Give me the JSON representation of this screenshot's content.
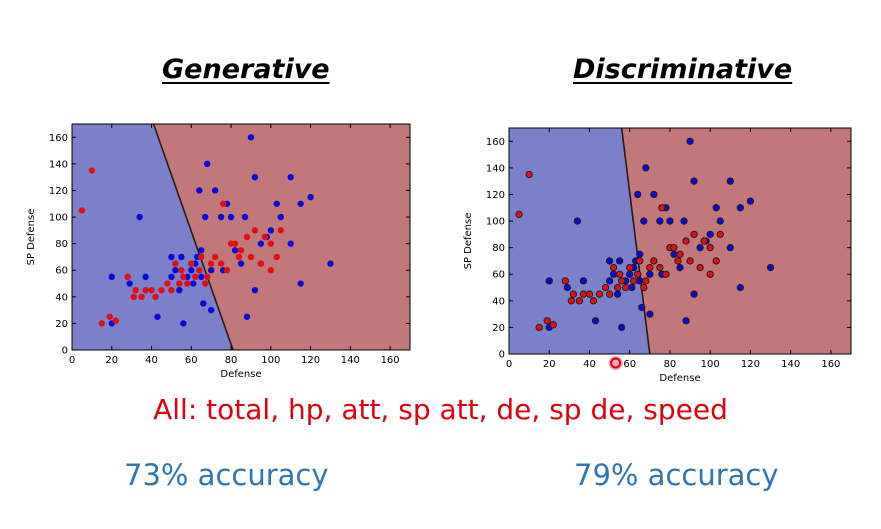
{
  "slide": {
    "features_text": "All: total, hp, att, sp att, de, sp de, speed"
  },
  "colors": {
    "blue_region": "#7c80c8",
    "red_region": "#c0787a",
    "blue_point": "#0a0ad8",
    "red_point": "#e01010",
    "features_text": "#e0000e",
    "accuracy_text": "#2e75b6",
    "cursor_marker": "#e0000e"
  },
  "chart_data": [
    {
      "type": "scatter",
      "title": "Generative",
      "accuracy": "73% accuracy",
      "xlabel": "Defense",
      "ylabel": "SP Defense",
      "xlim": [
        0,
        170
      ],
      "ylim": [
        0,
        170
      ],
      "xticks": [
        0,
        20,
        40,
        60,
        80,
        100,
        120,
        140,
        160
      ],
      "yticks": [
        0,
        20,
        40,
        60,
        80,
        100,
        120,
        140,
        160
      ],
      "decision_boundary": [
        [
          41,
          170
        ],
        [
          81,
          0
        ]
      ],
      "regions": {
        "left": "blue",
        "right": "red"
      },
      "grid": false,
      "series": [
        {
          "color": "blue",
          "points": [
            [
              20,
              55
            ],
            [
              20,
              20
            ],
            [
              29,
              50
            ],
            [
              34,
              100
            ],
            [
              37,
              55
            ],
            [
              43,
              25
            ],
            [
              50,
              55
            ],
            [
              50,
              70
            ],
            [
              52,
              60
            ],
            [
              54,
              45
            ],
            [
              55,
              70
            ],
            [
              56,
              20
            ],
            [
              58,
              55
            ],
            [
              60,
              60
            ],
            [
              61,
              50
            ],
            [
              62,
              65
            ],
            [
              63,
              70
            ],
            [
              64,
              120
            ],
            [
              65,
              75
            ],
            [
              65,
              55
            ],
            [
              66,
              35
            ],
            [
              67,
              100
            ],
            [
              68,
              140
            ],
            [
              70,
              30
            ],
            [
              70,
              60
            ],
            [
              72,
              120
            ],
            [
              75,
              100
            ],
            [
              76,
              60
            ],
            [
              78,
              110
            ],
            [
              80,
              100
            ],
            [
              82,
              75
            ],
            [
              85,
              65
            ],
            [
              87,
              100
            ],
            [
              88,
              25
            ],
            [
              90,
              160
            ],
            [
              92,
              130
            ],
            [
              92,
              45
            ],
            [
              95,
              80
            ],
            [
              98,
              85
            ],
            [
              100,
              90
            ],
            [
              103,
              110
            ],
            [
              105,
              100
            ],
            [
              110,
              80
            ],
            [
              110,
              130
            ],
            [
              115,
              50
            ],
            [
              115,
              110
            ],
            [
              120,
              115
            ],
            [
              130,
              65
            ]
          ]
        },
        {
          "color": "red",
          "points": [
            [
              5,
              105
            ],
            [
              10,
              135
            ],
            [
              15,
              20
            ],
            [
              19,
              25
            ],
            [
              22,
              22
            ],
            [
              28,
              55
            ],
            [
              31,
              40
            ],
            [
              32,
              45
            ],
            [
              35,
              40
            ],
            [
              37,
              45
            ],
            [
              40,
              45
            ],
            [
              42,
              40
            ],
            [
              45,
              45
            ],
            [
              48,
              50
            ],
            [
              50,
              45
            ],
            [
              52,
              65
            ],
            [
              54,
              50
            ],
            [
              55,
              60
            ],
            [
              56,
              55
            ],
            [
              58,
              50
            ],
            [
              60,
              65
            ],
            [
              62,
              55
            ],
            [
              64,
              60
            ],
            [
              65,
              70
            ],
            [
              67,
              50
            ],
            [
              68,
              55
            ],
            [
              70,
              65
            ],
            [
              72,
              70
            ],
            [
              75,
              65
            ],
            [
              76,
              110
            ],
            [
              78,
              60
            ],
            [
              80,
              80
            ],
            [
              82,
              80
            ],
            [
              84,
              70
            ],
            [
              85,
              75
            ],
            [
              88,
              85
            ],
            [
              90,
              70
            ],
            [
              92,
              90
            ],
            [
              95,
              65
            ],
            [
              97,
              85
            ],
            [
              100,
              60
            ],
            [
              100,
              80
            ],
            [
              103,
              70
            ],
            [
              105,
              90
            ]
          ]
        }
      ]
    },
    {
      "type": "scatter",
      "title": "Discriminative",
      "accuracy": "79% accuracy",
      "xlabel": "Defense",
      "ylabel": "SP Defense",
      "xlim": [
        0,
        170
      ],
      "ylim": [
        0,
        170
      ],
      "xticks": [
        0,
        20,
        40,
        60,
        80,
        100,
        120,
        140,
        160
      ],
      "yticks": [
        0,
        20,
        40,
        60,
        80,
        100,
        120,
        140,
        160
      ],
      "decision_boundary": [
        [
          56,
          170
        ],
        [
          70,
          0
        ]
      ],
      "regions": {
        "left": "blue",
        "right": "red"
      },
      "grid": false,
      "series": [
        {
          "color": "blue",
          "points": [
            [
              20,
              55
            ],
            [
              20,
              20
            ],
            [
              29,
              50
            ],
            [
              34,
              100
            ],
            [
              37,
              55
            ],
            [
              43,
              25
            ],
            [
              50,
              55
            ],
            [
              50,
              70
            ],
            [
              52,
              60
            ],
            [
              54,
              45
            ],
            [
              55,
              70
            ],
            [
              56,
              20
            ],
            [
              58,
              55
            ],
            [
              60,
              60
            ],
            [
              61,
              50
            ],
            [
              62,
              65
            ],
            [
              63,
              70
            ],
            [
              64,
              120
            ],
            [
              65,
              75
            ],
            [
              65,
              55
            ],
            [
              66,
              35
            ],
            [
              67,
              100
            ],
            [
              68,
              140
            ],
            [
              70,
              30
            ],
            [
              70,
              60
            ],
            [
              72,
              120
            ],
            [
              75,
              100
            ],
            [
              76,
              60
            ],
            [
              78,
              110
            ],
            [
              80,
              100
            ],
            [
              82,
              75
            ],
            [
              85,
              65
            ],
            [
              87,
              100
            ],
            [
              88,
              25
            ],
            [
              90,
              160
            ],
            [
              92,
              130
            ],
            [
              92,
              45
            ],
            [
              95,
              80
            ],
            [
              98,
              85
            ],
            [
              100,
              90
            ],
            [
              103,
              110
            ],
            [
              105,
              100
            ],
            [
              110,
              80
            ],
            [
              110,
              130
            ],
            [
              115,
              50
            ],
            [
              115,
              110
            ],
            [
              120,
              115
            ],
            [
              130,
              65
            ]
          ]
        },
        {
          "color": "red",
          "points": [
            [
              5,
              105
            ],
            [
              10,
              135
            ],
            [
              15,
              20
            ],
            [
              19,
              25
            ],
            [
              22,
              22
            ],
            [
              28,
              55
            ],
            [
              31,
              40
            ],
            [
              32,
              45
            ],
            [
              35,
              40
            ],
            [
              37,
              45
            ],
            [
              40,
              45
            ],
            [
              42,
              40
            ],
            [
              45,
              45
            ],
            [
              48,
              50
            ],
            [
              50,
              45
            ],
            [
              52,
              65
            ],
            [
              54,
              50
            ],
            [
              55,
              60
            ],
            [
              56,
              55
            ],
            [
              58,
              50
            ],
            [
              60,
              65
            ],
            [
              62,
              55
            ],
            [
              64,
              60
            ],
            [
              65,
              70
            ],
            [
              67,
              50
            ],
            [
              68,
              55
            ],
            [
              70,
              65
            ],
            [
              72,
              70
            ],
            [
              75,
              65
            ],
            [
              76,
              110
            ],
            [
              78,
              60
            ],
            [
              80,
              80
            ],
            [
              82,
              80
            ],
            [
              84,
              70
            ],
            [
              85,
              75
            ],
            [
              88,
              85
            ],
            [
              90,
              70
            ],
            [
              92,
              90
            ],
            [
              95,
              65
            ],
            [
              97,
              85
            ],
            [
              100,
              60
            ],
            [
              100,
              80
            ],
            [
              103,
              70
            ],
            [
              105,
              90
            ]
          ]
        }
      ],
      "cursor_marker_x": 53
    }
  ]
}
